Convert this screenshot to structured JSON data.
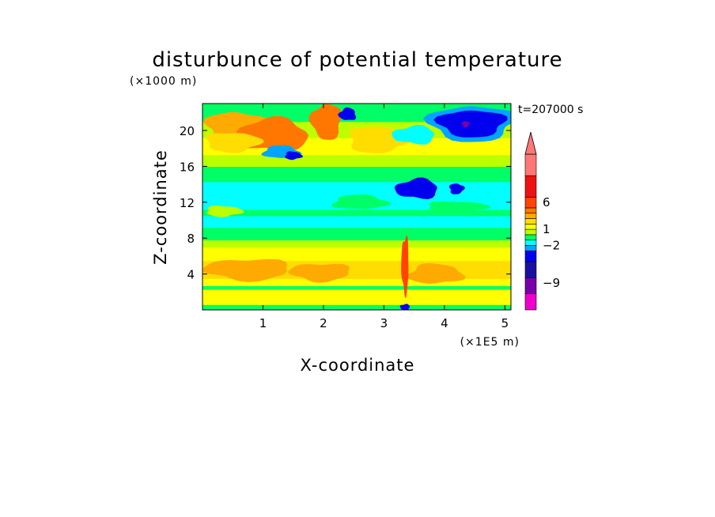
{
  "chart_data": {
    "type": "heatmap",
    "title": "disturbunce of potential temperature",
    "time_label": "t=207000 s",
    "xlabel": "X-coordinate",
    "ylabel": "Z-coordinate",
    "x_unit": "(×1E5 m)",
    "y_unit": "(×1000 m)",
    "xlim": [
      0,
      5.1
    ],
    "ylim": [
      0,
      23
    ],
    "x_ticks": [
      "1",
      "2",
      "3",
      "4",
      "5"
    ],
    "y_ticks": [
      "4",
      "8",
      "12",
      "16",
      "20"
    ],
    "colorbar": {
      "labels": [
        {
          "text": "6",
          "value": 6
        },
        {
          "text": "1",
          "value": 1
        },
        {
          "text": "−2",
          "value": -2
        },
        {
          "text": "−9",
          "value": -9
        }
      ],
      "levels": [
        {
          "min": -14,
          "max": -11,
          "color": "#ee00cc"
        },
        {
          "min": -11,
          "max": -8,
          "color": "#7700aa"
        },
        {
          "min": -8,
          "max": -5,
          "color": "#1a10a0"
        },
        {
          "min": -5,
          "max": -3,
          "color": "#0000ee"
        },
        {
          "min": -3,
          "max": -2,
          "color": "#00a5ff"
        },
        {
          "min": -2,
          "max": -1,
          "color": "#00ffff"
        },
        {
          "min": -1,
          "max": 0,
          "color": "#00ff66"
        },
        {
          "min": 0,
          "max": 1,
          "color": "#bbff00"
        },
        {
          "min": 1,
          "max": 2,
          "color": "#ffff00"
        },
        {
          "min": 2,
          "max": 3,
          "color": "#ffdd00"
        },
        {
          "min": 3,
          "max": 4,
          "color": "#ffaa00"
        },
        {
          "min": 4,
          "max": 5,
          "color": "#ff7700"
        },
        {
          "min": 5,
          "max": 7,
          "color": "#ff4400"
        },
        {
          "min": 7,
          "max": 11,
          "color": "#ee1111"
        },
        {
          "min": 11,
          "max": 15,
          "color": "#ff7777"
        }
      ]
    },
    "field": {
      "x_range": [
        0,
        5.1
      ],
      "z_range": [
        0,
        23
      ],
      "layers": [
        {
          "z": [
            0,
            0.6
          ],
          "value": -0.5
        },
        {
          "z": [
            0.6,
            2.3
          ],
          "value": 1.5
        },
        {
          "z": [
            2.3,
            2.7
          ],
          "value": -0.5
        },
        {
          "z": [
            2.7,
            3.5
          ],
          "value": 1.5
        },
        {
          "z": [
            3.5,
            5.5
          ],
          "value": 2.5
        },
        {
          "z": [
            5.5,
            7.0
          ],
          "value": 1.5
        },
        {
          "z": [
            7.0,
            7.8
          ],
          "value": 0.5
        },
        {
          "z": [
            7.8,
            9.2
          ],
          "value": -0.5
        },
        {
          "z": [
            9.2,
            10.5
          ],
          "value": -1.5
        },
        {
          "z": [
            10.5,
            11.2
          ],
          "value": -0.5
        },
        {
          "z": [
            11.2,
            14.3
          ],
          "value": -1.5
        },
        {
          "z": [
            14.3,
            16.0
          ],
          "value": -0.5
        },
        {
          "z": [
            16.0,
            17.3
          ],
          "value": 0.5
        },
        {
          "z": [
            17.3,
            19.2
          ],
          "value": 1.5
        },
        {
          "z": [
            19.2,
            21.0
          ],
          "value": 0.5
        },
        {
          "z": [
            21.0,
            23.0
          ],
          "value": -0.5
        }
      ],
      "features": [
        {
          "x": 0.55,
          "z": 20.5,
          "rx": 0.5,
          "rz": 1.6,
          "value": 3.5
        },
        {
          "x": 1.15,
          "z": 19.5,
          "rx": 0.6,
          "rz": 1.8,
          "value": 4.5
        },
        {
          "x": 0.5,
          "z": 18.7,
          "rx": 0.45,
          "rz": 1.1,
          "value": 2.5
        },
        {
          "x": 2.05,
          "z": 21.0,
          "rx": 0.25,
          "rz": 2.0,
          "value": 4.5
        },
        {
          "x": 2.9,
          "z": 19.0,
          "rx": 0.5,
          "rz": 1.5,
          "value": 2.5
        },
        {
          "x": 1.3,
          "z": 17.6,
          "rx": 0.3,
          "rz": 0.7,
          "value": -2.5
        },
        {
          "x": 1.5,
          "z": 17.2,
          "rx": 0.14,
          "rz": 0.45,
          "value": -4
        },
        {
          "x": 2.4,
          "z": 21.8,
          "rx": 0.14,
          "rz": 0.7,
          "value": -4
        },
        {
          "x": 3.5,
          "z": 19.5,
          "rx": 0.35,
          "rz": 1.0,
          "value": -1.5
        },
        {
          "x": 4.45,
          "z": 20.8,
          "rx": 0.7,
          "rz": 2.0,
          "value": -2.5
        },
        {
          "x": 4.45,
          "z": 20.8,
          "rx": 0.55,
          "rz": 1.5,
          "value": -4
        },
        {
          "x": 4.35,
          "z": 20.7,
          "rx": 0.06,
          "rz": 0.35,
          "value": -9
        },
        {
          "x": 3.55,
          "z": 13.5,
          "rx": 0.35,
          "rz": 1.1,
          "value": -4
        },
        {
          "x": 4.2,
          "z": 13.5,
          "rx": 0.12,
          "rz": 0.6,
          "value": -4
        },
        {
          "x": 0.35,
          "z": 11.0,
          "rx": 0.3,
          "rz": 0.6,
          "value": 0.5
        },
        {
          "x": 2.6,
          "z": 12.0,
          "rx": 0.45,
          "rz": 0.8,
          "value": -0.5
        },
        {
          "x": 4.2,
          "z": 11.5,
          "rx": 0.5,
          "rz": 0.6,
          "value": -0.5
        },
        {
          "x": 0.75,
          "z": 4.5,
          "rx": 0.7,
          "rz": 1.2,
          "value": 3.5
        },
        {
          "x": 1.95,
          "z": 4.2,
          "rx": 0.5,
          "rz": 1.0,
          "value": 3.5
        },
        {
          "x": 3.85,
          "z": 4.0,
          "rx": 0.45,
          "rz": 1.1,
          "value": 3.5
        },
        {
          "x": 3.35,
          "z": 5.0,
          "rx": 0.06,
          "rz": 3.2,
          "value": 5.5
        },
        {
          "x": 3.35,
          "z": 0.3,
          "rx": 0.08,
          "rz": 0.35,
          "value": -4
        }
      ]
    }
  }
}
